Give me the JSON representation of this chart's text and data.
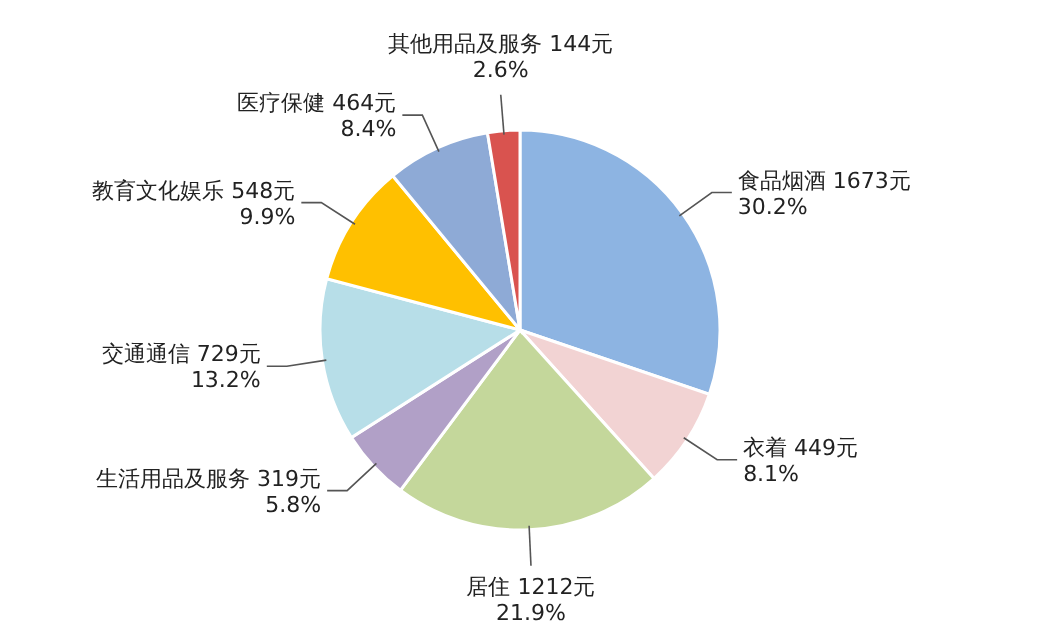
{
  "chart_data": {
    "type": "pie",
    "categories": [
      "食品烟酒",
      "衣着",
      "居住",
      "生活用品及服务",
      "交通通信",
      "教育文化娱乐",
      "医疗保健",
      "其他用品及服务"
    ],
    "values": [
      1673,
      449,
      1212,
      319,
      729,
      548,
      464,
      144
    ],
    "value_labels": [
      "1673元\n30.2%",
      "449元\n8.1%",
      "1212元\n21.9%",
      "319元\n5.8%",
      "729元\n13.2%",
      "548元\n9.9%",
      "464元\n8.4%",
      "144元\n2.6%"
    ],
    "colors": [
      "#8db4e2",
      "#f2d3d3",
      "#c4d79b",
      "#b1a0c7",
      "#b7dee8",
      "#ffc000",
      "#8eaad6",
      "#d9534f"
    ]
  }
}
